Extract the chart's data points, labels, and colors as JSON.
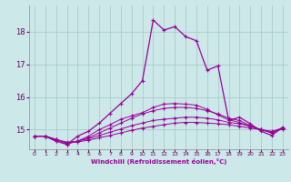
{
  "xlabel": "Windchill (Refroidissement éolien,°C)",
  "background_color": "#cce8e8",
  "grid_color": "#aacccc",
  "line_color": "#990099",
  "xlim": [
    -0.5,
    23.5
  ],
  "ylim": [
    14.4,
    18.8
  ],
  "yticks": [
    15,
    16,
    17,
    18
  ],
  "xticks": [
    0,
    1,
    2,
    3,
    4,
    5,
    6,
    7,
    8,
    9,
    10,
    11,
    12,
    13,
    14,
    15,
    16,
    17,
    18,
    19,
    20,
    21,
    22,
    23
  ],
  "series": [
    [
      14.8,
      14.8,
      14.7,
      14.62,
      14.62,
      14.68,
      14.75,
      14.82,
      14.9,
      14.98,
      15.05,
      15.1,
      15.15,
      15.2,
      15.22,
      15.22,
      15.2,
      15.18,
      15.15,
      15.1,
      15.05,
      15.0,
      14.95,
      15.05
    ],
    [
      14.8,
      14.8,
      14.7,
      14.6,
      14.65,
      14.72,
      14.82,
      14.92,
      15.02,
      15.12,
      15.2,
      15.28,
      15.32,
      15.35,
      15.38,
      15.38,
      15.35,
      15.3,
      15.22,
      15.18,
      15.1,
      15.0,
      14.92,
      15.02
    ],
    [
      14.8,
      14.8,
      14.7,
      14.58,
      14.65,
      14.75,
      14.9,
      15.05,
      15.2,
      15.35,
      15.48,
      15.58,
      15.65,
      15.68,
      15.68,
      15.65,
      15.58,
      15.48,
      15.35,
      15.28,
      15.12,
      15.0,
      14.9,
      15.05
    ],
    [
      14.8,
      14.8,
      14.65,
      14.55,
      14.65,
      14.8,
      15.0,
      15.15,
      15.32,
      15.42,
      15.52,
      15.68,
      15.78,
      15.8,
      15.78,
      15.75,
      15.62,
      15.45,
      15.3,
      15.22,
      15.1,
      15.0,
      14.9,
      15.05
    ],
    [
      14.8,
      14.8,
      14.65,
      14.55,
      14.8,
      14.95,
      15.2,
      15.5,
      15.8,
      16.1,
      16.5,
      18.35,
      18.05,
      18.15,
      17.85,
      17.72,
      16.82,
      16.95,
      15.28,
      15.38,
      15.18,
      14.95,
      14.82,
      15.08
    ]
  ]
}
